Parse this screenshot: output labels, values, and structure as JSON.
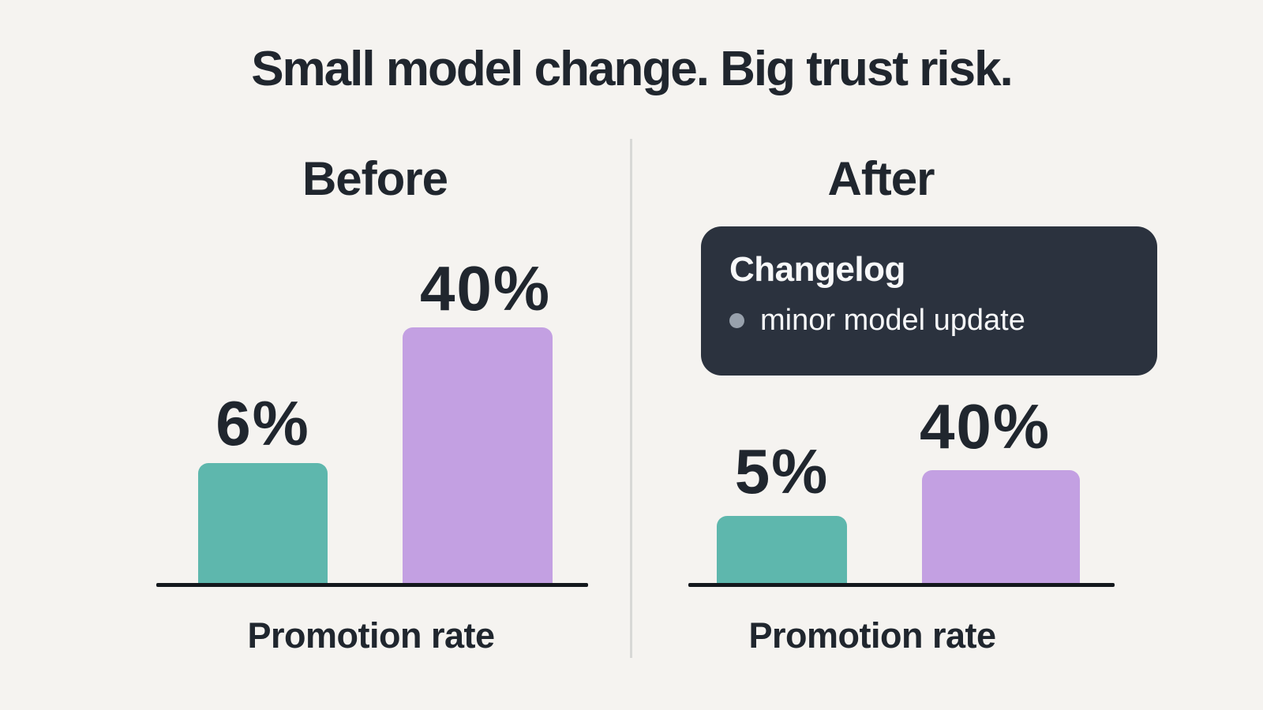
{
  "title": "Small model change. Big trust risk.",
  "panels": {
    "before": {
      "heading": "Before",
      "bars": [
        {
          "label": "6%",
          "value": 6,
          "color_name": "teal"
        },
        {
          "label": "40%",
          "value": 40,
          "color_name": "purple"
        }
      ],
      "xlabel": "Promotion rate"
    },
    "after": {
      "heading": "After",
      "changelog": {
        "title": "Changelog",
        "items": [
          "minor model update"
        ]
      },
      "bars": [
        {
          "label": "5%",
          "value": 5,
          "color_name": "teal"
        },
        {
          "label": "40%",
          "value": 40,
          "color_name": "purple"
        }
      ],
      "xlabel": "Promotion rate"
    }
  },
  "colors": {
    "background": "#f5f3f0",
    "text_dark": "#20262e",
    "bar_teal": "#5eb7ad",
    "bar_purple": "#c3a0e2",
    "axis": "#14181d",
    "divider": "#d8d8d6",
    "changelog_bg": "#2b323e",
    "changelog_text": "#f7f8f9",
    "bullet_gray": "#98a1ac"
  },
  "chart_data": [
    {
      "type": "bar",
      "title": "Before",
      "categories": [
        "bar-1",
        "bar-2"
      ],
      "values": [
        6,
        40
      ],
      "data_labels": [
        "6%",
        "40%"
      ],
      "bar_colors": [
        "#5eb7ad",
        "#c3a0e2"
      ],
      "xlabel": "Promotion rate",
      "ylabel": "",
      "grid": false,
      "y_axis_shown": false
    },
    {
      "type": "bar",
      "title": "After",
      "categories": [
        "bar-1",
        "bar-2"
      ],
      "values": [
        5,
        40
      ],
      "data_labels": [
        "5%",
        "40%"
      ],
      "bar_colors": [
        "#5eb7ad",
        "#c3a0e2"
      ],
      "xlabel": "Promotion rate",
      "ylabel": "",
      "grid": false,
      "y_axis_shown": false,
      "annotation": {
        "title": "Changelog",
        "items": [
          "minor model update"
        ]
      }
    }
  ]
}
